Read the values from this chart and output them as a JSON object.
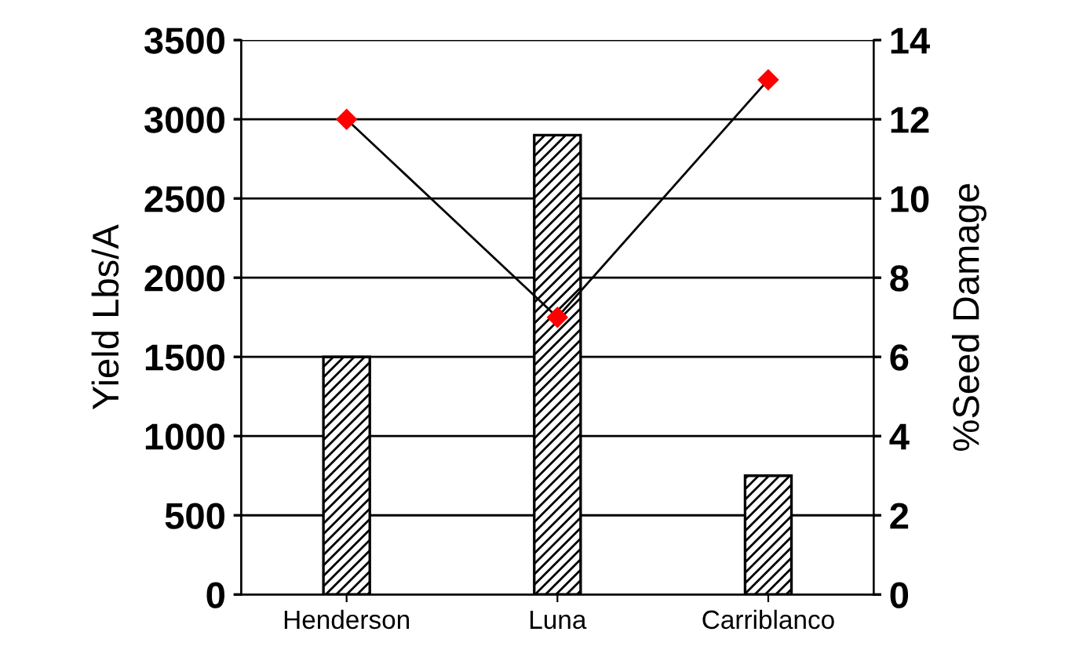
{
  "chart_data": {
    "type": "bar",
    "categories": [
      "Henderson",
      "Luna",
      "Carriblanco"
    ],
    "series": [
      {
        "color": "#000000",
        "values": [
          1500,
          2900,
          750
        ]
      },
      {
        "type": "line",
        "axis": "y2",
        "color": "#ff0000",
        "marker": "diamond",
        "values": [
          12,
          7,
          13
        ]
      }
    ],
    "ylabel": "Yield Lbs/A",
    "y2label": "%Seed Damage",
    "ylim": [
      0,
      3500
    ],
    "yticks": [
      0,
      500,
      1000,
      1500,
      2000,
      2500,
      3000,
      3500
    ],
    "y2lim": [
      0,
      14
    ],
    "y2ticks": [
      0,
      2,
      4,
      6,
      8,
      10,
      12,
      14
    ],
    "grid": "y",
    "legend": false
  }
}
